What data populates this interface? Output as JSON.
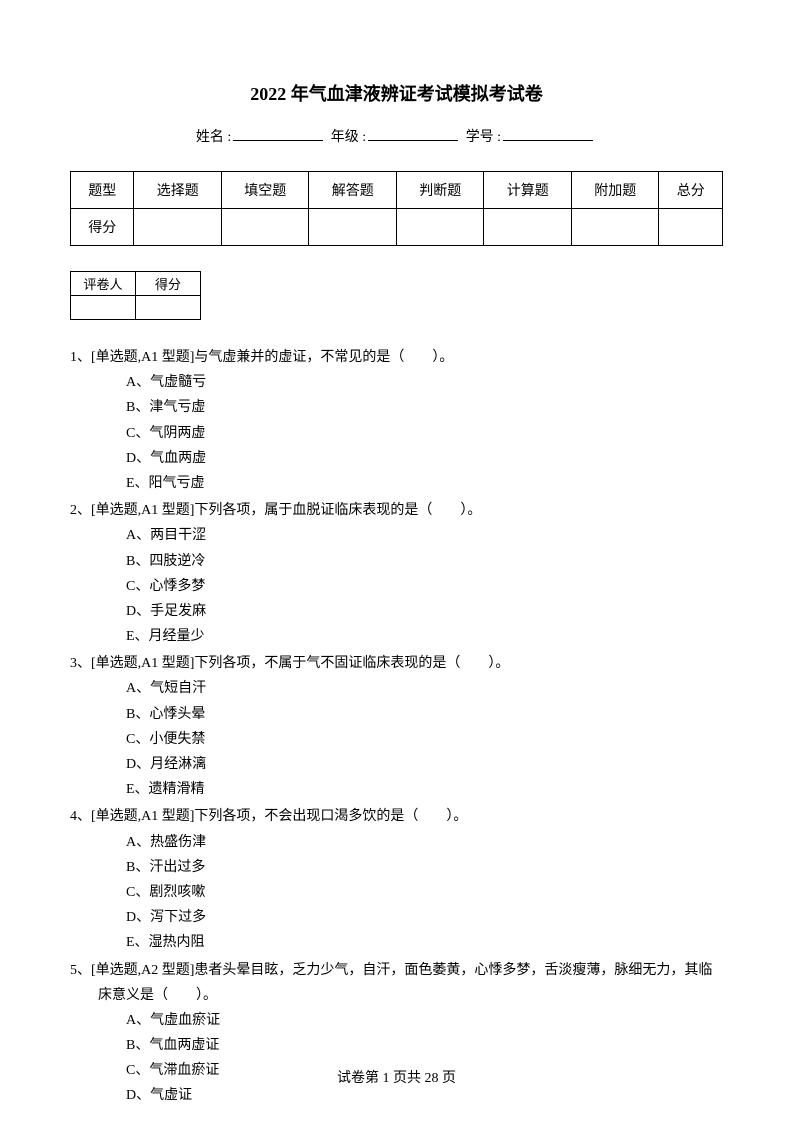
{
  "title": "2022 年气血津液辨证考试模拟考试卷",
  "info": {
    "name_label": "姓名 :",
    "grade_label": "年级 :",
    "number_label": "学号 :"
  },
  "score_table": {
    "headers": [
      "题型",
      "选择题",
      "填空题",
      "解答题",
      "判断题",
      "计算题",
      "附加题",
      "总分"
    ],
    "row_label": "得分"
  },
  "grader_table": {
    "col1": "评卷人",
    "col2": "得分"
  },
  "questions": [
    {
      "num": "1、",
      "stem": "[单选题,A1 型题]与气虚兼并的虚证，不常见的是（　　）。",
      "options": [
        "A、气虚髓亏",
        "B、津气亏虚",
        "C、气阴两虚",
        "D、气血两虚",
        "E、阳气亏虚"
      ]
    },
    {
      "num": "2、",
      "stem": "[单选题,A1 型题]下列各项，属于血脱证临床表现的是（　　）。",
      "options": [
        "A、两目干涩",
        "B、四肢逆冷",
        "C、心悸多梦",
        "D、手足发麻",
        "E、月经量少"
      ]
    },
    {
      "num": "3、",
      "stem": "[单选题,A1 型题]下列各项，不属于气不固证临床表现的是（　　）。",
      "options": [
        "A、气短自汗",
        "B、心悸头晕",
        "C、小便失禁",
        "D、月经淋漓",
        "E、遗精滑精"
      ]
    },
    {
      "num": "4、",
      "stem": "[单选题,A1 型题]下列各项，不会出现口渴多饮的是（　　）。",
      "options": [
        "A、热盛伤津",
        "B、汗出过多",
        "C、剧烈咳嗽",
        "D、泻下过多",
        "E、湿热内阻"
      ]
    },
    {
      "num": "5、",
      "stem": "[单选题,A2 型题]患者头晕目眩，乏力少气，自汗，面色萎黄，心悸多梦，舌淡瘦薄，脉细无力，其临",
      "stem2": "床意义是（　　）。",
      "options": [
        "A、气虚血瘀证",
        "B、气血两虚证",
        "C、气滞血瘀证",
        "D、气虚证"
      ]
    }
  ],
  "footer": {
    "text_prefix": "试卷第 ",
    "page": "1",
    "text_mid": " 页共 ",
    "total": "28",
    "text_suffix": " 页"
  }
}
